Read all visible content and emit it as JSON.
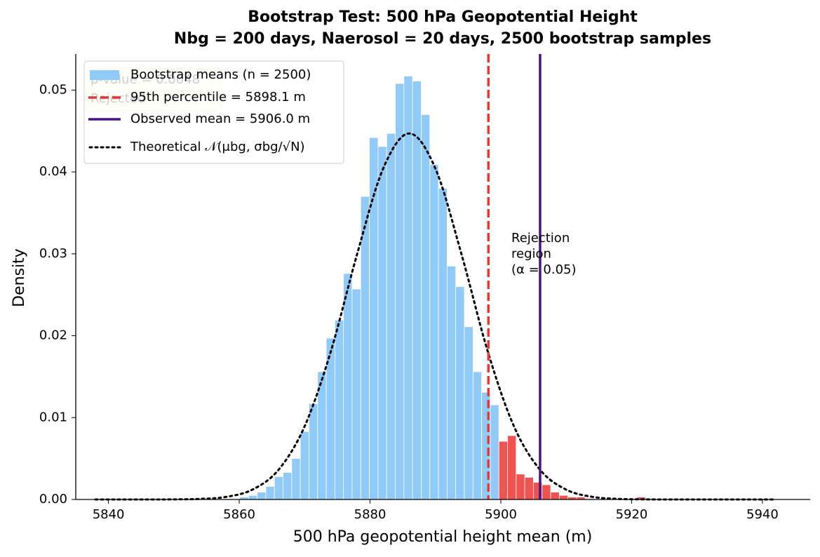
{
  "chart_data": {
    "type": "histogram",
    "title": "Bootstrap Test: 500 hPa Geopotential Height",
    "subtitle": "Nbg = 200 days, Naerosol = 20 days, 2500 bootstrap samples",
    "xlabel": "500 hPa geopotential height mean (m)",
    "ylabel": "Density",
    "bins": [
      5860.1,
      5861.42,
      5862.74,
      5864.06,
      5865.38,
      5866.7,
      5868.02,
      5869.34,
      5870.66,
      5871.98,
      5873.3,
      5874.62,
      5875.94,
      5877.26,
      5878.58,
      5879.9,
      5881.22,
      5882.54,
      5883.86,
      5885.18,
      5886.5,
      5887.82,
      5889.14,
      5890.46,
      5891.78,
      5893.1,
      5894.42,
      5895.74,
      5897.06,
      5898.38,
      5899.7,
      5901.02,
      5902.34,
      5903.66,
      5904.98,
      5906.3,
      5907.62,
      5908.94,
      5910.26,
      5911.58,
      5912.9,
      5914.22,
      5915.54,
      5916.86,
      5918.18,
      5919.5,
      5920.82,
      5922.14
    ],
    "values": [
      0.0003,
      0.0005,
      0.0009,
      0.0016,
      0.0028,
      0.0033,
      0.005,
      0.0083,
      0.0117,
      0.0156,
      0.0197,
      0.0219,
      0.0276,
      0.0257,
      0.037,
      0.0442,
      0.0431,
      0.0447,
      0.0508,
      0.0517,
      0.0511,
      0.047,
      0.0409,
      0.038,
      0.0285,
      0.026,
      0.0211,
      0.0156,
      0.0131,
      0.01156,
      0.0071,
      0.0078,
      0.0031,
      0.0027,
      0.0021,
      0.0018,
      0.0009,
      0.0005,
      0.0003,
      0.0003,
      0.0001,
      0,
      0,
      0,
      0,
      0,
      0.0003
    ],
    "bar_colors": [
      "#90caf9",
      "#90caf9",
      "#90caf9",
      "#90caf9",
      "#90caf9",
      "#90caf9",
      "#90caf9",
      "#90caf9",
      "#90caf9",
      "#90caf9",
      "#90caf9",
      "#90caf9",
      "#90caf9",
      "#90caf9",
      "#90caf9",
      "#90caf9",
      "#90caf9",
      "#90caf9",
      "#90caf9",
      "#90caf9",
      "#90caf9",
      "#90caf9",
      "#90caf9",
      "#90caf9",
      "#90caf9",
      "#90caf9",
      "#90caf9",
      "#90caf9",
      "#90caf9",
      "#90caf9",
      "#ef5350",
      "#ef5350",
      "#ef5350",
      "#ef5350",
      "#ef5350",
      "#ef5350",
      "#ef5350",
      "#ef5350",
      "#ef5350",
      "#ef5350",
      "#ef5350",
      "#ef5350",
      "#ef5350",
      "#ef5350",
      "#ef5350",
      "#ef5350",
      "#ef5350"
    ],
    "hist_name": "Bootstrap means (n = 2500)",
    "hist_color": "#90caf9",
    "curve": {
      "name": "Theoretical 𝒩(μbg, σbg/√N)",
      "color": "#000000",
      "x": [
        5838,
        5842,
        5846,
        5850,
        5854,
        5858,
        5862,
        5866,
        5870,
        5874,
        5878,
        5882,
        5886,
        5890,
        5894,
        5898,
        5902,
        5906,
        5910,
        5914,
        5918,
        5922,
        5926,
        5930,
        5934,
        5938,
        5942
      ],
      "values": [
        0,
        0,
        0,
        1.3e-05,
        7e-05,
        0.00032,
        0.0012,
        0.00362,
        0.00894,
        0.01808,
        0.0299,
        0.0404,
        0.0447,
        0.0404,
        0.0299,
        0.01808,
        0.00894,
        0.00362,
        0.0012,
        0.00032,
        7e-05,
        1.3e-05,
        0,
        0,
        0,
        0,
        0
      ]
    },
    "vlines": [
      {
        "name": "95th percentile = 5898.1 m",
        "value": 5898.1,
        "color": "#e53935",
        "style": "dashed"
      },
      {
        "name": "Observed mean = 5906.0 m",
        "value": 5906.0,
        "color": "#4a1486",
        "style": "solid"
      }
    ],
    "rejection_label": [
      "Rejection",
      "region",
      "(α = 0.05)"
    ],
    "stat_box": [
      "p-value = 0.0048",
      "Rejected"
    ],
    "xlim": [
      5835,
      5947.3
    ],
    "ylim": [
      0,
      0.0544
    ],
    "xticks": [
      5840,
      5860,
      5880,
      5900,
      5920,
      5940
    ],
    "yticks": [
      {
        "value": 0,
        "label": "0.00"
      },
      0.01,
      0.02,
      0.03,
      0.04,
      0.05
    ],
    "grid": false,
    "legend": "upper left"
  }
}
